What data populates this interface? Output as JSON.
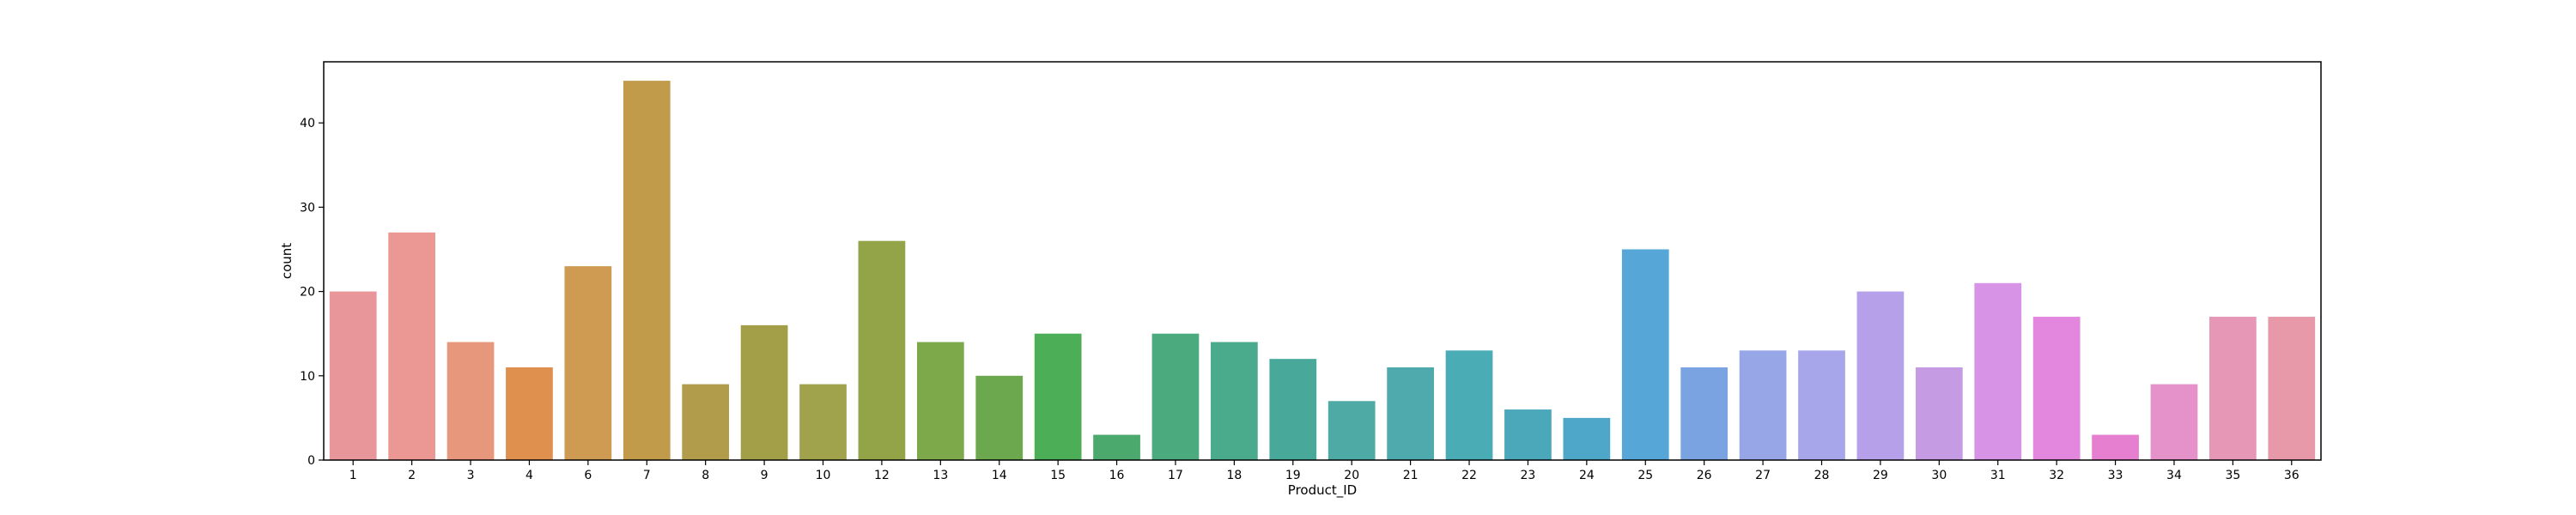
{
  "chart_data": {
    "type": "bar",
    "title": "",
    "xlabel": "Product_ID",
    "ylabel": "count",
    "ylim": [
      0,
      47.25
    ],
    "yticks": [
      0,
      10,
      20,
      30,
      40
    ],
    "grid": false,
    "categories": [
      "1",
      "2",
      "3",
      "4",
      "6",
      "7",
      "8",
      "9",
      "10",
      "12",
      "13",
      "14",
      "15",
      "16",
      "17",
      "18",
      "19",
      "20",
      "21",
      "22",
      "23",
      "24",
      "25",
      "26",
      "27",
      "28",
      "29",
      "30",
      "31",
      "32",
      "33",
      "34",
      "35",
      "36"
    ],
    "values": [
      20,
      27,
      14,
      11,
      23,
      45,
      9,
      16,
      9,
      26,
      14,
      10,
      15,
      3,
      15,
      14,
      12,
      7,
      11,
      13,
      6,
      5,
      25,
      11,
      13,
      13,
      20,
      11,
      21,
      17,
      3,
      9,
      17,
      17
    ],
    "colors": [
      "#e9969a",
      "#eb9894",
      "#e7977b",
      "#df8f4e",
      "#cf9a51",
      "#c19b4a",
      "#b09c4a",
      "#a39e48",
      "#a0a24c",
      "#93a347",
      "#7da94a",
      "#6ba84e",
      "#4caf58",
      "#4ca96d",
      "#4caa7f",
      "#4aab8c",
      "#48a99a",
      "#4eaaa5",
      "#4eaaad",
      "#4aadb5",
      "#4ba8bb",
      "#4ea6c8",
      "#56a7d8",
      "#7aa4e1",
      "#97a6e6",
      "#a8a6ea",
      "#b6a0ea",
      "#c59be3",
      "#d793e5",
      "#e386dd",
      "#e77fd1",
      "#e492c9",
      "#e697b6",
      "#e899a9"
    ]
  }
}
